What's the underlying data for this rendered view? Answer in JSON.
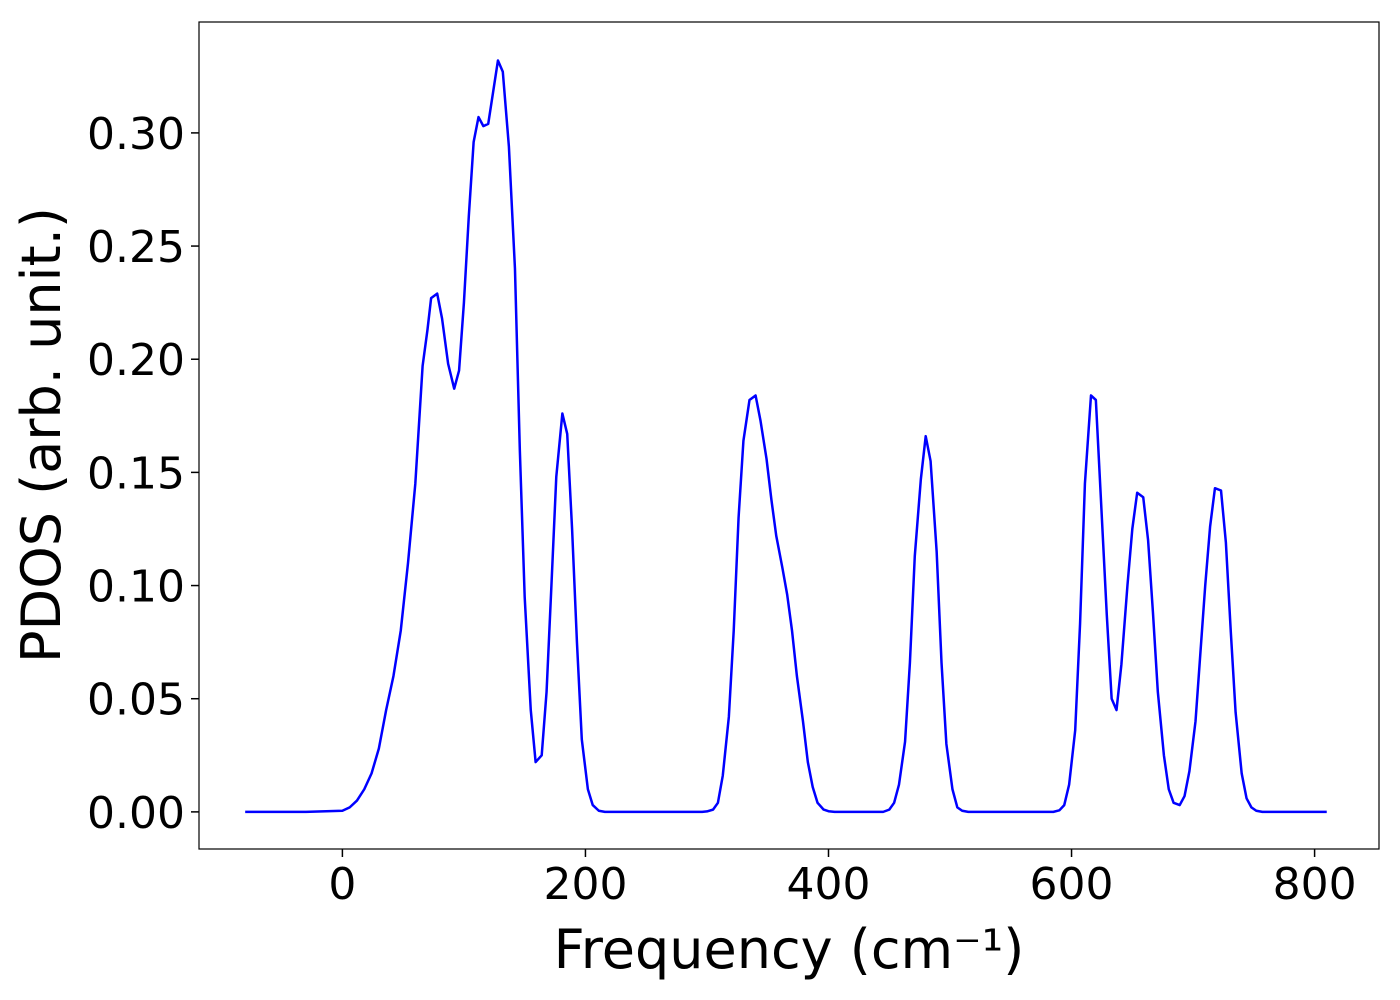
{
  "chart_data": {
    "type": "line",
    "x_label": "Frequency (cm⁻¹)",
    "y_label": "PDOS (arb. unit.)",
    "xlim": [
      -118,
      853
    ],
    "ylim": [
      -0.0164,
      0.349
    ],
    "xticks": [
      0,
      200,
      400,
      600,
      800
    ],
    "yticks": [
      {
        "value": 0,
        "label": "0.00"
      },
      {
        "value": 0.05,
        "label": "0.05"
      },
      {
        "value": 0.1,
        "label": "0.10"
      },
      {
        "value": 0.15,
        "label": "0.15"
      },
      {
        "value": 0.2,
        "label": "0.20"
      },
      {
        "value": 0.25,
        "label": "0.25"
      },
      {
        "value": 0.3,
        "label": "0.30"
      }
    ],
    "grid": false,
    "x": [
      -80,
      -30,
      0,
      6,
      12,
      18,
      24,
      30,
      36,
      42,
      48,
      54,
      60,
      66,
      70,
      73,
      78,
      82,
      87,
      92,
      96,
      100,
      104,
      108,
      112,
      116,
      120,
      124,
      128,
      132,
      137,
      142,
      146,
      150,
      155,
      159,
      164,
      168,
      172,
      176,
      181,
      185,
      189,
      193,
      197,
      202,
      206,
      211,
      216,
      296,
      300,
      305,
      309,
      313,
      318,
      322,
      326,
      330,
      335,
      340,
      344,
      349,
      353,
      357,
      362,
      366,
      370,
      374,
      379,
      383,
      387,
      391,
      396,
      400,
      405,
      445,
      450,
      454,
      458,
      463,
      467,
      471,
      476,
      480,
      484,
      489,
      493,
      497,
      502,
      506,
      510,
      515,
      585,
      590,
      594,
      598,
      603,
      607,
      611,
      616,
      620,
      624,
      629,
      633,
      637,
      641,
      646,
      650,
      654,
      659,
      663,
      667,
      671,
      676,
      680,
      684,
      689,
      693,
      697,
      702,
      706,
      710,
      714,
      718,
      723,
      727,
      731,
      735,
      740,
      744,
      748,
      752,
      757,
      810
    ],
    "series": [
      {
        "name": "PDOS",
        "color": "#0000ff",
        "values": [
          0,
          0,
          0.0005,
          0.002,
          0.005,
          0.01,
          0.017,
          0.028,
          0.045,
          0.06,
          0.08,
          0.11,
          0.145,
          0.197,
          0.213,
          0.227,
          0.229,
          0.218,
          0.198,
          0.187,
          0.195,
          0.225,
          0.263,
          0.296,
          0.307,
          0.303,
          0.304,
          0.318,
          0.332,
          0.327,
          0.294,
          0.24,
          0.16,
          0.095,
          0.045,
          0.022,
          0.025,
          0.053,
          0.1,
          0.148,
          0.176,
          0.167,
          0.125,
          0.075,
          0.032,
          0.01,
          0.003,
          0.0005,
          0,
          0,
          0.0002,
          0.001,
          0.004,
          0.016,
          0.042,
          0.08,
          0.13,
          0.164,
          0.182,
          0.184,
          0.173,
          0.156,
          0.138,
          0.122,
          0.108,
          0.096,
          0.08,
          0.06,
          0.04,
          0.022,
          0.011,
          0.004,
          0.001,
          0.0003,
          0,
          0,
          0.001,
          0.004,
          0.012,
          0.031,
          0.066,
          0.113,
          0.147,
          0.166,
          0.155,
          0.115,
          0.066,
          0.03,
          0.01,
          0.002,
          0.0005,
          0,
          0,
          0.0007,
          0.003,
          0.012,
          0.036,
          0.083,
          0.145,
          0.184,
          0.182,
          0.14,
          0.087,
          0.05,
          0.045,
          0.065,
          0.1,
          0.125,
          0.141,
          0.139,
          0.12,
          0.088,
          0.053,
          0.025,
          0.01,
          0.004,
          0.003,
          0.007,
          0.018,
          0.04,
          0.07,
          0.1,
          0.126,
          0.143,
          0.142,
          0.119,
          0.08,
          0.044,
          0.017,
          0.006,
          0.002,
          0.0005,
          0,
          0
        ]
      }
    ]
  }
}
